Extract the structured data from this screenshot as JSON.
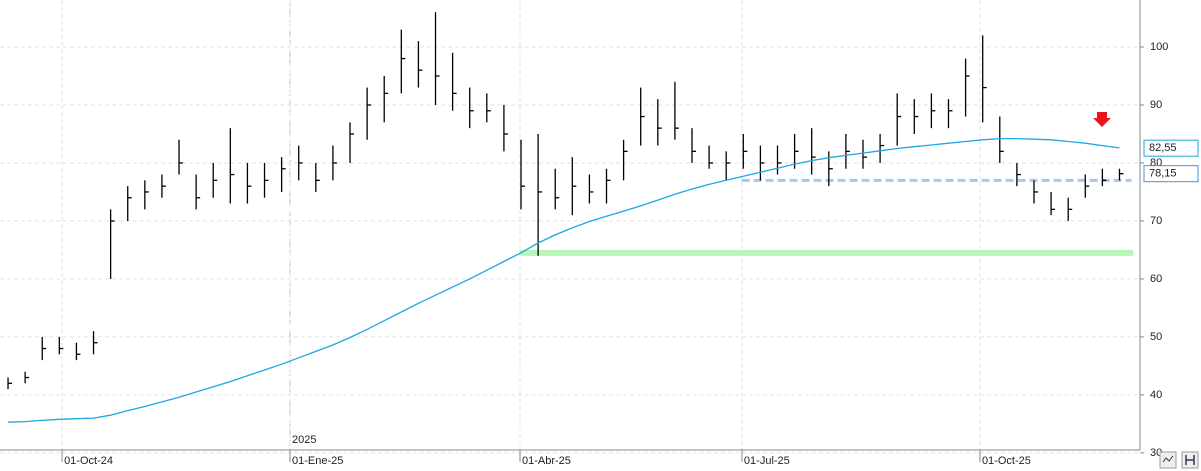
{
  "chart_data": {
    "type": "ohlc",
    "year_label": "2025",
    "xlim": [
      -0.47,
      66.2
    ],
    "xticks": [
      {
        "value": 3.16,
        "label": "01-Oct-24"
      },
      {
        "value": 16.49,
        "label": "01-Ene-25"
      },
      {
        "value": 29.94,
        "label": "01-Abr-25"
      },
      {
        "value": 42.92,
        "label": "01-Jul-25"
      },
      {
        "value": 56.84,
        "label": "01-Oct-25"
      }
    ],
    "ylim": [
      30.5,
      108.1
    ],
    "yticks": [
      30,
      40,
      50,
      60,
      70,
      80,
      90,
      100
    ],
    "grid": true,
    "bar_color": "#000000",
    "high": [
      43,
      44,
      50,
      50,
      49,
      51,
      72,
      76,
      77,
      78,
      84,
      78,
      80,
      86,
      80,
      80,
      81,
      83,
      80,
      83,
      87,
      93,
      95,
      103,
      101,
      106,
      99,
      93,
      92,
      90,
      84,
      85,
      79,
      81,
      78,
      79,
      84,
      93,
      91,
      94,
      86,
      83,
      82,
      85,
      83,
      83,
      85,
      86,
      82,
      85,
      84,
      85,
      92,
      91,
      92,
      91,
      98,
      102,
      88,
      80,
      77,
      75,
      74,
      78,
      79,
      79
    ],
    "low": [
      41,
      42,
      46,
      47,
      46,
      47,
      60,
      70,
      72,
      74,
      78,
      72,
      74,
      73,
      73,
      74,
      75,
      77,
      75,
      77,
      80,
      84,
      87,
      92,
      93,
      90,
      89,
      86,
      87,
      82,
      72,
      64,
      72,
      71,
      73,
      73,
      77,
      83,
      83,
      84,
      80,
      79,
      77,
      79,
      77,
      78,
      79,
      78,
      76,
      79,
      79,
      80,
      83,
      85,
      86,
      86,
      88,
      87,
      80,
      76,
      73,
      71,
      70,
      74,
      76,
      77
    ],
    "close": [
      42,
      43,
      48,
      48,
      47,
      49,
      70,
      74,
      75,
      76,
      80,
      74,
      77,
      78,
      76,
      77,
      79,
      80,
      77,
      80,
      85,
      90,
      92,
      98,
      96,
      95,
      92,
      89,
      89,
      85,
      76,
      75,
      74,
      76,
      75,
      77,
      82,
      88,
      86,
      86,
      82,
      80,
      80,
      82,
      80,
      80,
      82,
      81,
      79,
      82,
      81,
      83,
      88,
      88,
      89,
      89,
      95,
      93,
      82,
      78,
      75,
      72,
      72,
      76,
      77,
      78.15
    ],
    "moving_average": {
      "color": "#1ea7e0",
      "values": [
        35.3,
        35.4,
        35.6,
        35.8,
        35.9,
        36.0,
        36.5,
        37.3,
        38.0,
        38.8,
        39.6,
        40.5,
        41.4,
        42.3,
        43.3,
        44.3,
        45.3,
        46.4,
        47.5,
        48.6,
        49.9,
        51.3,
        52.8,
        54.3,
        55.8,
        57.2,
        58.6,
        60.0,
        61.5,
        63.0,
        64.5,
        66.2,
        67.6,
        68.8,
        69.9,
        70.8,
        71.7,
        72.6,
        73.6,
        74.6,
        75.5,
        76.3,
        77.0,
        77.7,
        78.4,
        79.1,
        79.8,
        80.4,
        80.9,
        81.3,
        81.7,
        82.1,
        82.5,
        82.8,
        83.1,
        83.4,
        83.7,
        84.0,
        84.2,
        84.2,
        84.1,
        84.0,
        83.7,
        83.4,
        83.0,
        82.6
      ]
    },
    "levels": [
      {
        "value": 64.5,
        "x": [
          29.9,
          65.8
        ],
        "color": "#b8f5b8",
        "style": "solid"
      },
      {
        "value": 77,
        "x": [
          42.9,
          65.7
        ],
        "color": "#a9c8ec",
        "style": "dashed"
      }
    ],
    "price_labels": [
      {
        "value": 82.55,
        "label": "82,55",
        "color": "#1ea7e0"
      },
      {
        "value": 78.15,
        "label": "78,15",
        "color": "#4a90d9"
      }
    ]
  }
}
